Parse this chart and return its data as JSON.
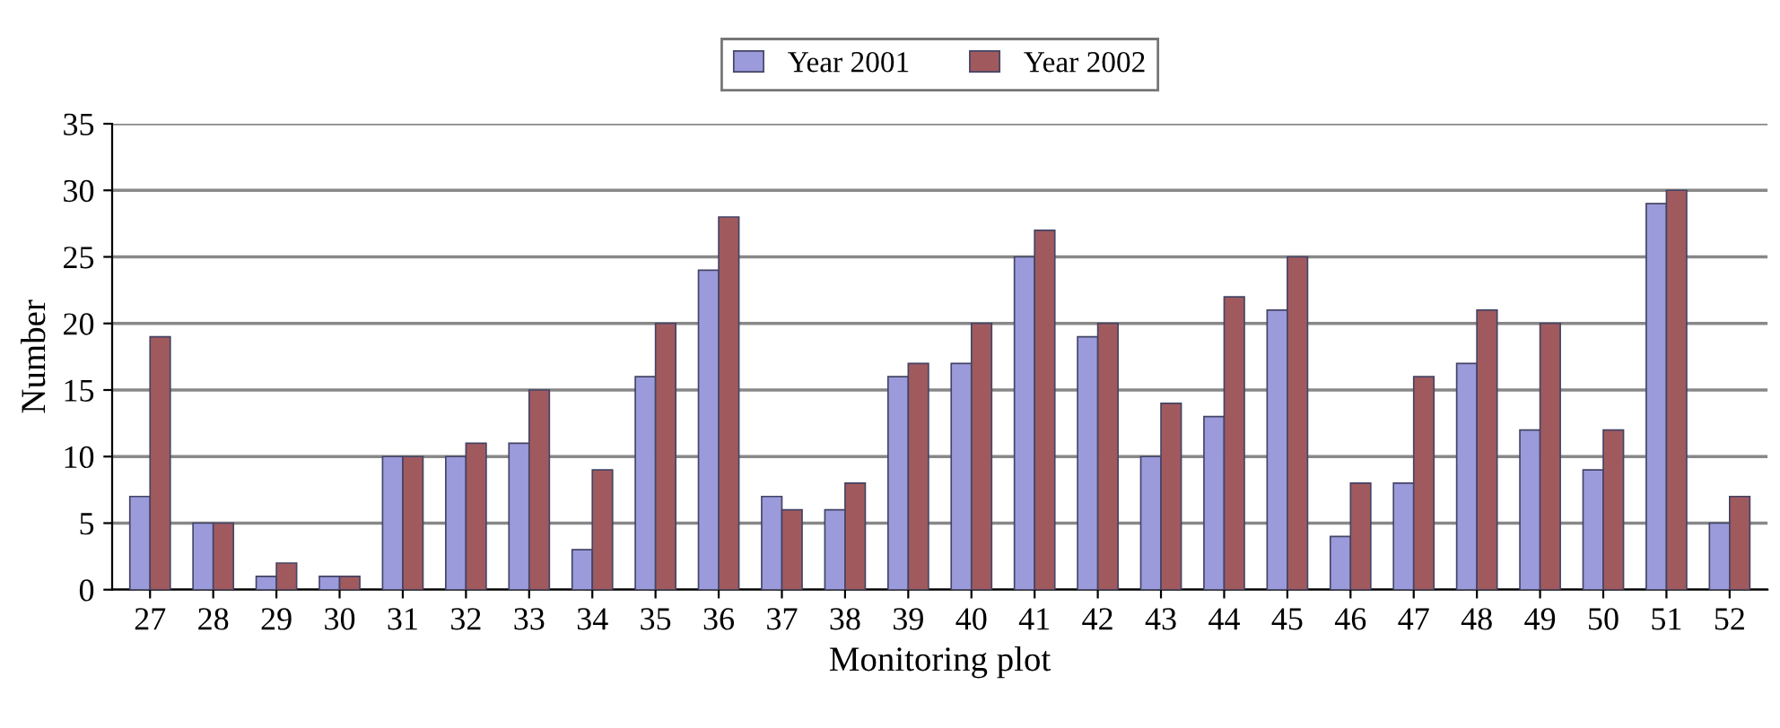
{
  "chart_data": {
    "type": "bar",
    "xlabel": "Monitoring plot",
    "ylabel": "Number",
    "categories": [
      "27",
      "28",
      "29",
      "30",
      "31",
      "32",
      "33",
      "34",
      "35",
      "36",
      "37",
      "38",
      "39",
      "40",
      "41",
      "42",
      "43",
      "44",
      "45",
      "46",
      "47",
      "48",
      "49",
      "50",
      "51",
      "52"
    ],
    "series": [
      {
        "name": "Year 2001",
        "color": "#9b9bdb",
        "values": [
          7,
          5,
          1,
          1,
          10,
          10,
          11,
          3,
          16,
          24,
          7,
          6,
          16,
          17,
          25,
          19,
          10,
          13,
          21,
          4,
          8,
          17,
          12,
          9,
          29,
          5
        ]
      },
      {
        "name": "Year 2002",
        "color": "#a05a5e",
        "values": [
          19,
          5,
          2,
          1,
          10,
          11,
          15,
          9,
          20,
          28,
          6,
          8,
          17,
          20,
          27,
          20,
          14,
          22,
          25,
          8,
          16,
          21,
          20,
          12,
          30,
          7
        ]
      }
    ],
    "ylim": [
      0,
      35
    ],
    "yticks": [
      0,
      5,
      10,
      15,
      20,
      25,
      30,
      35
    ],
    "grid": "y",
    "legend": "top"
  }
}
